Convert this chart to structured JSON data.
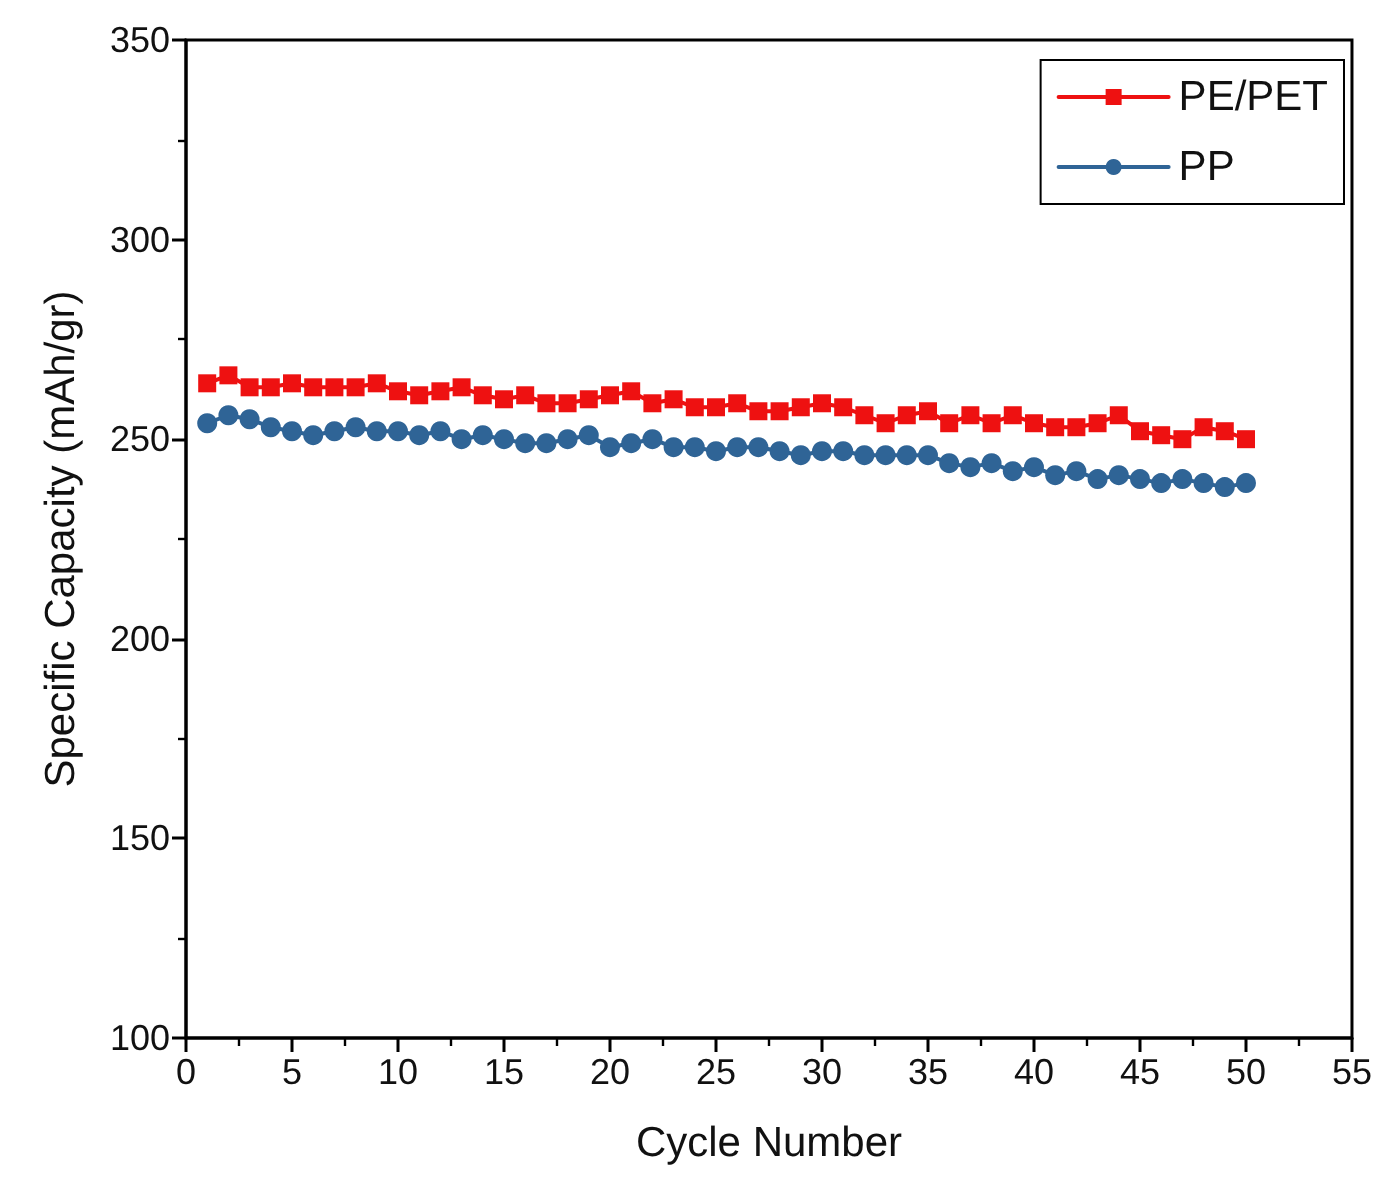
{
  "chart_data": {
    "type": "line",
    "xlabel": "Cycle Number",
    "ylabel": "Specific Capacity (mAh/gr)",
    "x": [
      1,
      2,
      3,
      4,
      5,
      6,
      7,
      8,
      9,
      10,
      11,
      12,
      13,
      14,
      15,
      16,
      17,
      18,
      19,
      20,
      21,
      22,
      23,
      24,
      25,
      26,
      27,
      28,
      29,
      30,
      31,
      32,
      33,
      34,
      35,
      36,
      37,
      38,
      39,
      40,
      41,
      42,
      43,
      44,
      45,
      46,
      47,
      48,
      49,
      50
    ],
    "series": [
      {
        "name": "PE/PET",
        "color": "#ee1111",
        "marker": "square",
        "values": [
          264,
          266,
          263,
          263,
          264,
          263,
          263,
          263,
          264,
          262,
          261,
          262,
          263,
          261,
          260,
          261,
          259,
          259,
          260,
          261,
          262,
          259,
          260,
          258,
          258,
          259,
          257,
          257,
          258,
          259,
          258,
          256,
          254,
          256,
          257,
          254,
          256,
          254,
          256,
          254,
          253,
          253,
          254,
          256,
          252,
          251,
          250,
          253,
          252,
          250
        ]
      },
      {
        "name": "PP",
        "color": "#2f6496",
        "marker": "circle",
        "values": [
          254,
          256,
          255,
          253,
          252,
          251,
          252,
          253,
          252,
          252,
          251,
          252,
          250,
          251,
          250,
          249,
          249,
          250,
          251,
          248,
          249,
          250,
          248,
          248,
          247,
          248,
          248,
          247,
          246,
          247,
          247,
          246,
          246,
          246,
          246,
          244,
          243,
          244,
          242,
          243,
          241,
          242,
          240,
          241,
          240,
          239,
          240,
          239,
          238,
          239
        ]
      }
    ],
    "xlim": [
      0,
      55
    ],
    "xticks": [
      0,
      5,
      10,
      15,
      20,
      25,
      30,
      35,
      40,
      45,
      50,
      55
    ],
    "ylim": [
      100,
      350
    ],
    "yticks": [
      100,
      150,
      200,
      250,
      300,
      350
    ],
    "grid": false,
    "legend": "top right",
    "line_style": "solid"
  }
}
